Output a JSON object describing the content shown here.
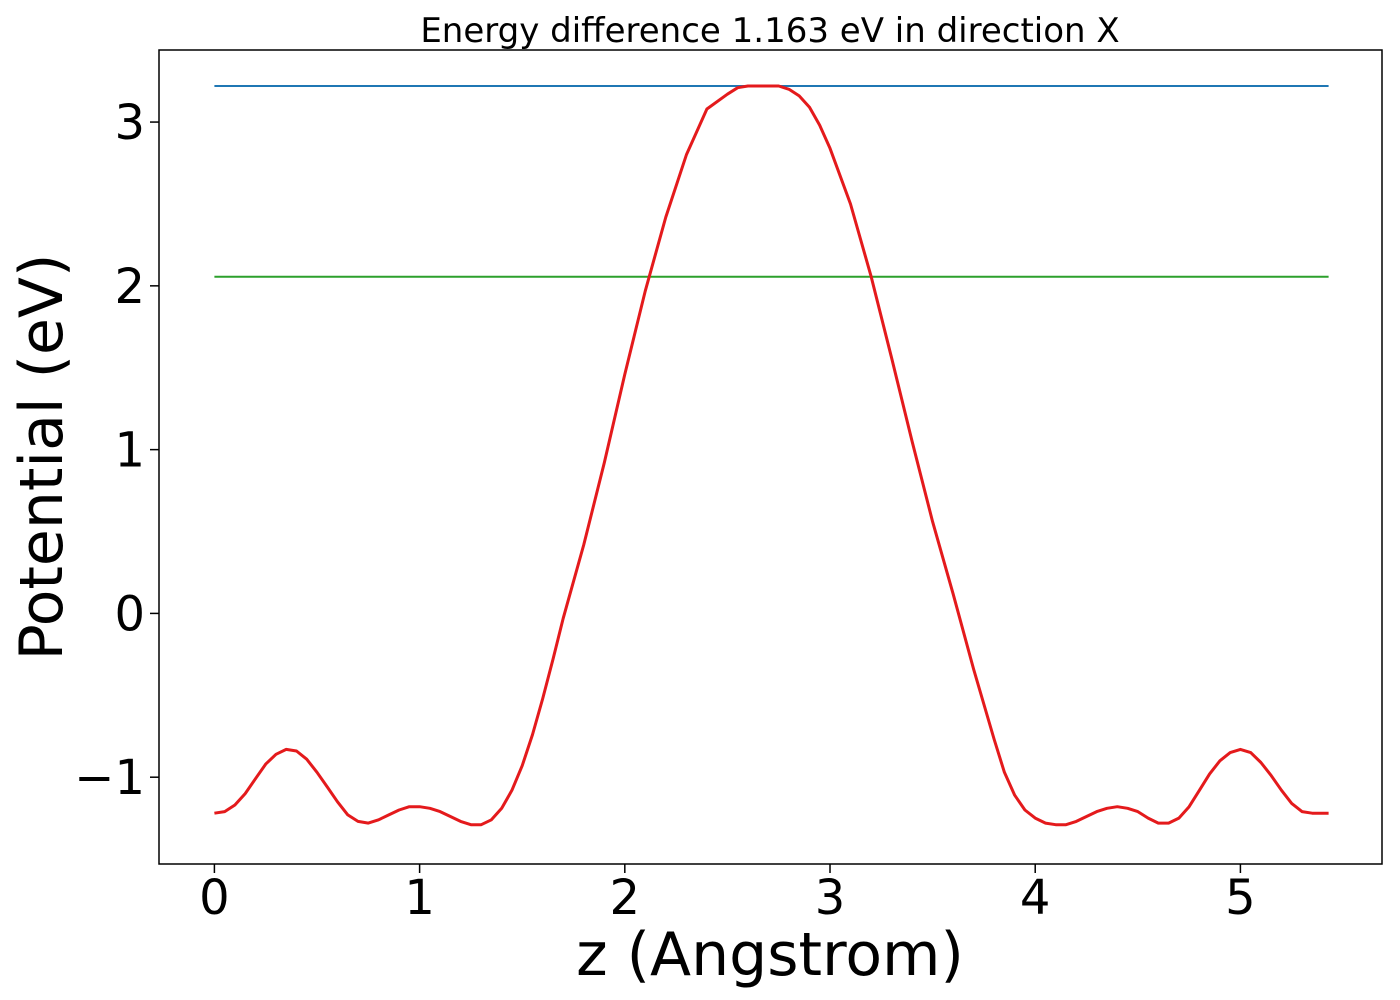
{
  "chart_data": {
    "type": "line",
    "title": "Energy difference 1.163 eV in direction X",
    "xlabel": "z (Angstrom)",
    "ylabel": "Potential (eV)",
    "xlim": [
      -0.27,
      5.69
    ],
    "ylim": [
      -1.53,
      3.44
    ],
    "x_ticks": [
      0,
      1,
      2,
      3,
      4,
      5
    ],
    "x_tick_labels": [
      "0",
      "1",
      "2",
      "3",
      "4",
      "5"
    ],
    "y_ticks": [
      -1,
      0,
      1,
      2,
      3
    ],
    "y_tick_labels": [
      "−1",
      "0",
      "1",
      "2",
      "3"
    ],
    "grid": false,
    "series": [
      {
        "color": "#1f77b4",
        "kind": "hline",
        "x": [
          0,
          5.43
        ],
        "y": [
          3.22,
          3.22
        ]
      },
      {
        "color": "#2ca02c",
        "kind": "hline",
        "x": [
          0,
          5.43
        ],
        "y": [
          2.056,
          2.056
        ]
      },
      {
        "color": "#e41a1c",
        "kind": "curve",
        "x": [
          0.0,
          0.05,
          0.1,
          0.15,
          0.2,
          0.25,
          0.3,
          0.35,
          0.4,
          0.45,
          0.5,
          0.55,
          0.6,
          0.65,
          0.7,
          0.75,
          0.8,
          0.85,
          0.9,
          0.95,
          1.0,
          1.05,
          1.1,
          1.15,
          1.2,
          1.25,
          1.3,
          1.35,
          1.4,
          1.45,
          1.5,
          1.55,
          1.6,
          1.65,
          1.7,
          1.8,
          1.9,
          2.0,
          2.1,
          2.2,
          2.3,
          2.4,
          2.5,
          2.55,
          2.6,
          2.65,
          2.7,
          2.75,
          2.8,
          2.85,
          2.9,
          2.95,
          3.0,
          3.1,
          3.2,
          3.3,
          3.4,
          3.5,
          3.6,
          3.7,
          3.8,
          3.85,
          3.9,
          3.95,
          4.0,
          4.05,
          4.1,
          4.15,
          4.2,
          4.25,
          4.3,
          4.35,
          4.4,
          4.45,
          4.5,
          4.55,
          4.6,
          4.65,
          4.7,
          4.75,
          4.8,
          4.85,
          4.9,
          4.95,
          5.0,
          5.05,
          5.1,
          5.15,
          5.2,
          5.25,
          5.3,
          5.35,
          5.43
        ],
        "y": [
          -1.22,
          -1.21,
          -1.17,
          -1.1,
          -1.01,
          -0.92,
          -0.86,
          -0.83,
          -0.84,
          -0.89,
          -0.97,
          -1.06,
          -1.15,
          -1.23,
          -1.27,
          -1.28,
          -1.26,
          -1.23,
          -1.2,
          -1.18,
          -1.18,
          -1.19,
          -1.21,
          -1.24,
          -1.27,
          -1.29,
          -1.29,
          -1.26,
          -1.19,
          -1.08,
          -0.93,
          -0.74,
          -0.52,
          -0.28,
          -0.03,
          0.42,
          0.92,
          1.46,
          1.97,
          2.42,
          2.8,
          3.08,
          3.17,
          3.21,
          3.22,
          3.22,
          3.22,
          3.22,
          3.2,
          3.16,
          3.09,
          2.98,
          2.84,
          2.5,
          2.06,
          1.56,
          1.05,
          0.56,
          0.12,
          -0.34,
          -0.77,
          -0.97,
          -1.11,
          -1.2,
          -1.25,
          -1.28,
          -1.29,
          -1.29,
          -1.27,
          -1.24,
          -1.21,
          -1.19,
          -1.18,
          -1.19,
          -1.21,
          -1.25,
          -1.28,
          -1.28,
          -1.25,
          -1.18,
          -1.08,
          -0.98,
          -0.9,
          -0.85,
          -0.83,
          -0.85,
          -0.91,
          -0.99,
          -1.08,
          -1.16,
          -1.21,
          -1.22,
          -1.22
        ]
      }
    ]
  }
}
